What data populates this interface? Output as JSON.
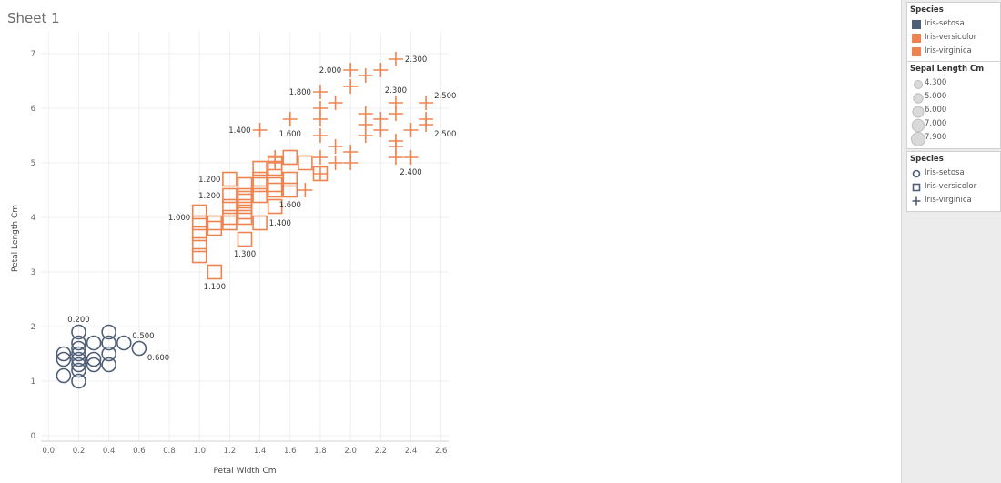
{
  "sheet": {
    "title": "Sheet 1"
  },
  "legend_color": {
    "title": "Species",
    "items": [
      {
        "label": "Iris-setosa",
        "color": "#4e5e76"
      },
      {
        "label": "Iris-versicolor",
        "color": "#ef8350"
      },
      {
        "label": "Iris-virginica",
        "color": "#ef8350"
      }
    ]
  },
  "legend_size": {
    "title": "Sepal Length Cm",
    "items": [
      {
        "label": "4.300"
      },
      {
        "label": "5.000"
      },
      {
        "label": "6.000"
      },
      {
        "label": "7.000"
      },
      {
        "label": "7.900"
      }
    ]
  },
  "legend_shape": {
    "title": "Species",
    "items": [
      {
        "label": "Iris-setosa",
        "shape": "circle-icon"
      },
      {
        "label": "Iris-versicolor",
        "shape": "square-icon"
      },
      {
        "label": "Iris-virginica",
        "shape": "plus-icon"
      }
    ]
  },
  "chart_data": {
    "type": "scatter",
    "title": "",
    "xlabel": "Petal Width Cm",
    "ylabel": "Petal Length Cm",
    "xlim": [
      -0.05,
      2.65
    ],
    "ylim": [
      -0.1,
      7.4
    ],
    "xticks": [
      "0.0",
      "0.2",
      "0.4",
      "0.6",
      "0.8",
      "1.0",
      "1.2",
      "1.4",
      "1.6",
      "1.8",
      "2.0",
      "2.2",
      "2.4",
      "2.6"
    ],
    "yticks": [
      "0",
      "1",
      "2",
      "3",
      "4",
      "5",
      "6",
      "7"
    ],
    "grid": true,
    "series": [
      {
        "name": "Iris-setosa",
        "color": "#4e5e76",
        "shape": "circle",
        "points": [
          [
            0.1,
            1.5
          ],
          [
            0.1,
            1.4
          ],
          [
            0.1,
            1.1
          ],
          [
            0.2,
            1.9
          ],
          [
            0.2,
            1.7
          ],
          [
            0.2,
            1.6
          ],
          [
            0.2,
            1.5
          ],
          [
            0.2,
            1.4
          ],
          [
            0.2,
            1.3
          ],
          [
            0.2,
            1.2
          ],
          [
            0.2,
            1.0
          ],
          [
            0.3,
            1.7
          ],
          [
            0.3,
            1.4
          ],
          [
            0.3,
            1.3
          ],
          [
            0.4,
            1.9
          ],
          [
            0.4,
            1.7
          ],
          [
            0.4,
            1.5
          ],
          [
            0.4,
            1.3
          ],
          [
            0.5,
            1.7
          ],
          [
            0.6,
            1.6
          ]
        ]
      },
      {
        "name": "Iris-versicolor",
        "color": "#ef8350",
        "shape": "square",
        "points": [
          [
            1.0,
            4.1
          ],
          [
            1.0,
            3.9
          ],
          [
            1.0,
            3.7
          ],
          [
            1.0,
            3.5
          ],
          [
            1.0,
            3.3
          ],
          [
            1.1,
            3.0
          ],
          [
            1.1,
            3.9
          ],
          [
            1.1,
            3.8
          ],
          [
            1.2,
            4.7
          ],
          [
            1.2,
            4.4
          ],
          [
            1.2,
            4.2
          ],
          [
            1.2,
            4.0
          ],
          [
            1.2,
            3.9
          ],
          [
            1.3,
            4.6
          ],
          [
            1.3,
            4.4
          ],
          [
            1.3,
            4.3
          ],
          [
            1.3,
            4.2
          ],
          [
            1.3,
            4.1
          ],
          [
            1.3,
            4.0
          ],
          [
            1.3,
            3.6
          ],
          [
            1.4,
            4.9
          ],
          [
            1.4,
            4.7
          ],
          [
            1.4,
            4.6
          ],
          [
            1.4,
            4.4
          ],
          [
            1.4,
            3.9
          ],
          [
            1.5,
            5.0
          ],
          [
            1.5,
            4.9
          ],
          [
            1.5,
            4.6
          ],
          [
            1.5,
            4.5
          ],
          [
            1.5,
            4.2
          ],
          [
            1.6,
            5.1
          ],
          [
            1.6,
            4.7
          ],
          [
            1.6,
            4.5
          ],
          [
            1.7,
            5.0
          ],
          [
            1.8,
            4.8
          ]
        ]
      },
      {
        "name": "Iris-virginica",
        "color": "#ef8350",
        "shape": "plus",
        "points": [
          [
            1.4,
            5.6
          ],
          [
            1.5,
            5.1
          ],
          [
            1.5,
            5.0
          ],
          [
            1.6,
            5.8
          ],
          [
            1.7,
            4.5
          ],
          [
            1.8,
            6.3
          ],
          [
            1.8,
            6.0
          ],
          [
            1.8,
            5.8
          ],
          [
            1.8,
            5.5
          ],
          [
            1.8,
            5.1
          ],
          [
            1.8,
            4.8
          ],
          [
            1.9,
            6.1
          ],
          [
            1.9,
            5.3
          ],
          [
            1.9,
            5.0
          ],
          [
            2.0,
            6.7
          ],
          [
            2.0,
            6.4
          ],
          [
            2.0,
            5.2
          ],
          [
            2.0,
            5.0
          ],
          [
            2.1,
            6.6
          ],
          [
            2.1,
            5.9
          ],
          [
            2.1,
            5.7
          ],
          [
            2.1,
            5.5
          ],
          [
            2.2,
            6.7
          ],
          [
            2.2,
            5.8
          ],
          [
            2.2,
            5.6
          ],
          [
            2.3,
            6.9
          ],
          [
            2.3,
            6.1
          ],
          [
            2.3,
            5.9
          ],
          [
            2.3,
            5.4
          ],
          [
            2.3,
            5.3
          ],
          [
            2.3,
            5.1
          ],
          [
            2.4,
            5.6
          ],
          [
            2.4,
            5.1
          ],
          [
            2.5,
            6.1
          ],
          [
            2.5,
            5.8
          ],
          [
            2.5,
            5.7
          ]
        ]
      }
    ],
    "annotations": [
      {
        "text": "0.200",
        "x": 0.2,
        "y": 1.9,
        "pos": "above"
      },
      {
        "text": "0.500",
        "x": 0.5,
        "y": 1.7,
        "pos": "above-right"
      },
      {
        "text": "0.600",
        "x": 0.6,
        "y": 1.6,
        "pos": "below-right"
      },
      {
        "text": "1.000",
        "x": 1.0,
        "y": 4.0,
        "pos": "left"
      },
      {
        "text": "1.100",
        "x": 1.1,
        "y": 3.0,
        "pos": "below"
      },
      {
        "text": "1.200",
        "x": 1.2,
        "y": 4.7,
        "pos": "left"
      },
      {
        "text": "1.200",
        "x": 1.2,
        "y": 4.4,
        "pos": "left"
      },
      {
        "text": "1.300",
        "x": 1.3,
        "y": 3.6,
        "pos": "below"
      },
      {
        "text": "1.400",
        "x": 1.4,
        "y": 3.9,
        "pos": "right"
      },
      {
        "text": "1.400",
        "x": 1.4,
        "y": 5.6,
        "pos": "left"
      },
      {
        "text": "1.600",
        "x": 1.6,
        "y": 4.5,
        "pos": "below"
      },
      {
        "text": "1.600",
        "x": 1.6,
        "y": 5.8,
        "pos": "below"
      },
      {
        "text": "1.800",
        "x": 1.8,
        "y": 6.3,
        "pos": "left"
      },
      {
        "text": "2.000",
        "x": 2.0,
        "y": 6.7,
        "pos": "left"
      },
      {
        "text": "2.300",
        "x": 2.3,
        "y": 6.9,
        "pos": "right"
      },
      {
        "text": "2.300",
        "x": 2.3,
        "y": 6.1,
        "pos": "above"
      },
      {
        "text": "2.400",
        "x": 2.4,
        "y": 5.1,
        "pos": "below"
      },
      {
        "text": "2.500",
        "x": 2.5,
        "y": 6.1,
        "pos": "above-right"
      },
      {
        "text": "2.500",
        "x": 2.5,
        "y": 5.7,
        "pos": "below-right"
      }
    ]
  }
}
